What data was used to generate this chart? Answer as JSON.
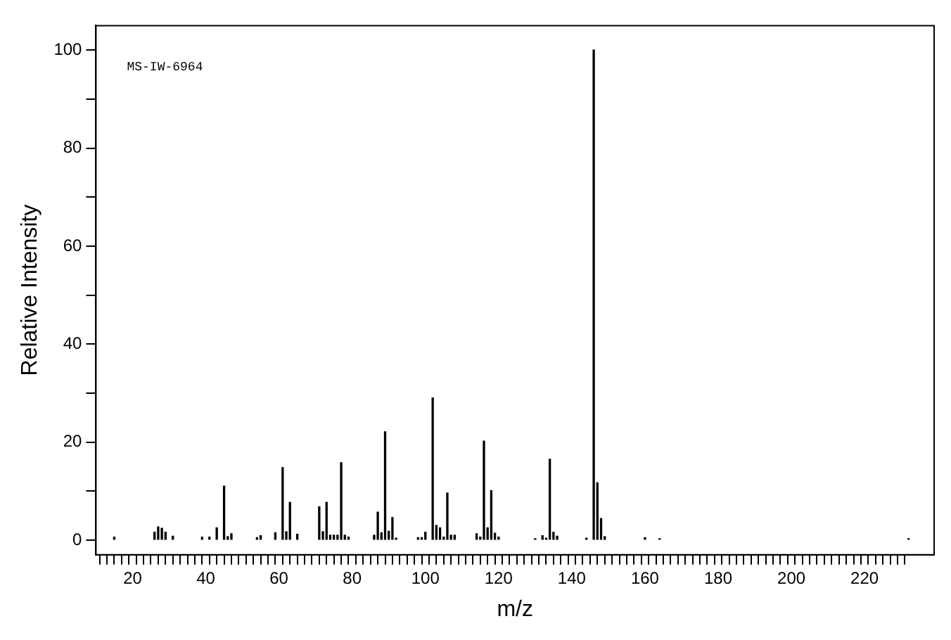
{
  "chart_data": {
    "type": "bar",
    "xlabel": "m/z",
    "ylabel": "Relative Intensity",
    "annotations": [
      "MS-IW-6964"
    ],
    "x": [
      15,
      26,
      27,
      28,
      29,
      31,
      39,
      41,
      43,
      45,
      46,
      47,
      54,
      55,
      59,
      61,
      62,
      63,
      65,
      71,
      72,
      73,
      74,
      75,
      76,
      77,
      78,
      79,
      86,
      87,
      88,
      89,
      90,
      91,
      92,
      98,
      99,
      100,
      102,
      103,
      104,
      105,
      106,
      107,
      108,
      114,
      115,
      116,
      117,
      118,
      119,
      120,
      130,
      132,
      133,
      134,
      135,
      136,
      144,
      146,
      147,
      148,
      149,
      160,
      164,
      232
    ],
    "values": [
      0.6,
      1.6,
      2.7,
      2.4,
      1.6,
      0.8,
      0.6,
      0.6,
      2.5,
      11,
      0.7,
      1.3,
      0.5,
      0.9,
      1.5,
      14.8,
      1.7,
      7.7,
      1.2,
      6.8,
      1.7,
      7.7,
      1,
      1,
      1,
      15.8,
      1,
      0.6,
      1,
      5.7,
      1.5,
      22.1,
      1.8,
      4.6,
      0.4,
      0.5,
      0.5,
      1.6,
      29,
      3,
      2.5,
      0.6,
      9.6,
      1,
      1,
      1.3,
      0.6,
      20.2,
      2.5,
      10.1,
      1.4,
      0.6,
      0.3,
      0.9,
      0.4,
      16.5,
      1.6,
      0.8,
      0.4,
      100,
      11.7,
      4.4,
      0.7,
      0.5,
      0.3,
      0.3
    ],
    "color": "#000000",
    "xlim": [
      10,
      239
    ],
    "xticks": [
      {
        "value": 12,
        "label": null
      },
      {
        "value": 14,
        "label": null
      },
      {
        "value": 16,
        "label": null
      },
      {
        "value": 18,
        "label": null
      },
      20,
      {
        "value": 22,
        "label": null
      },
      {
        "value": 24,
        "label": null
      },
      {
        "value": 26,
        "label": null
      },
      {
        "value": 28,
        "label": null
      },
      {
        "value": 30,
        "label": null
      },
      {
        "value": 32,
        "label": null
      },
      {
        "value": 34,
        "label": null
      },
      {
        "value": 36,
        "label": null
      },
      {
        "value": 38,
        "label": null
      },
      40,
      {
        "value": 42,
        "label": null
      },
      {
        "value": 44,
        "label": null
      },
      {
        "value": 46,
        "label": null
      },
      {
        "value": 48,
        "label": null
      },
      {
        "value": 50,
        "label": null
      },
      {
        "value": 52,
        "label": null
      },
      {
        "value": 54,
        "label": null
      },
      {
        "value": 56,
        "label": null
      },
      {
        "value": 58,
        "label": null
      },
      60,
      {
        "value": 62,
        "label": null
      },
      {
        "value": 64,
        "label": null
      },
      {
        "value": 66,
        "label": null
      },
      {
        "value": 68,
        "label": null
      },
      {
        "value": 70,
        "label": null
      },
      {
        "value": 72,
        "label": null
      },
      {
        "value": 74,
        "label": null
      },
      {
        "value": 76,
        "label": null
      },
      {
        "value": 78,
        "label": null
      },
      80,
      {
        "value": 82,
        "label": null
      },
      {
        "value": 84,
        "label": null
      },
      {
        "value": 86,
        "label": null
      },
      {
        "value": 88,
        "label": null
      },
      {
        "value": 90,
        "label": null
      },
      {
        "value": 92,
        "label": null
      },
      {
        "value": 94,
        "label": null
      },
      {
        "value": 96,
        "label": null
      },
      {
        "value": 98,
        "label": null
      },
      100,
      {
        "value": 102,
        "label": null
      },
      {
        "value": 104,
        "label": null
      },
      {
        "value": 106,
        "label": null
      },
      {
        "value": 108,
        "label": null
      },
      {
        "value": 110,
        "label": null
      },
      {
        "value": 112,
        "label": null
      },
      {
        "value": 114,
        "label": null
      },
      {
        "value": 116,
        "label": null
      },
      {
        "value": 118,
        "label": null
      },
      120,
      {
        "value": 122,
        "label": null
      },
      {
        "value": 124,
        "label": null
      },
      {
        "value": 126,
        "label": null
      },
      {
        "value": 128,
        "label": null
      },
      {
        "value": 130,
        "label": null
      },
      {
        "value": 132,
        "label": null
      },
      {
        "value": 134,
        "label": null
      },
      {
        "value": 136,
        "label": null
      },
      {
        "value": 138,
        "label": null
      },
      140,
      {
        "value": 142,
        "label": null
      },
      {
        "value": 144,
        "label": null
      },
      {
        "value": 146,
        "label": null
      },
      {
        "value": 148,
        "label": null
      },
      {
        "value": 150,
        "label": null
      },
      {
        "value": 152,
        "label": null
      },
      {
        "value": 154,
        "label": null
      },
      {
        "value": 156,
        "label": null
      },
      {
        "value": 158,
        "label": null
      },
      160,
      {
        "value": 162,
        "label": null
      },
      {
        "value": 164,
        "label": null
      },
      {
        "value": 166,
        "label": null
      },
      {
        "value": 168,
        "label": null
      },
      {
        "value": 170,
        "label": null
      },
      {
        "value": 172,
        "label": null
      },
      {
        "value": 174,
        "label": null
      },
      {
        "value": 176,
        "label": null
      },
      {
        "value": 178,
        "label": null
      },
      180,
      {
        "value": 182,
        "label": null
      },
      {
        "value": 184,
        "label": null
      },
      {
        "value": 186,
        "label": null
      },
      {
        "value": 188,
        "label": null
      },
      {
        "value": 190,
        "label": null
      },
      {
        "value": 192,
        "label": null
      },
      {
        "value": 194,
        "label": null
      },
      {
        "value": 196,
        "label": null
      },
      {
        "value": 198,
        "label": null
      },
      200,
      {
        "value": 202,
        "label": null
      },
      {
        "value": 204,
        "label": null
      },
      {
        "value": 206,
        "label": null
      },
      {
        "value": 208,
        "label": null
      },
      {
        "value": 210,
        "label": null
      },
      {
        "value": 212,
        "label": null
      },
      {
        "value": 214,
        "label": null
      },
      {
        "value": 216,
        "label": null
      },
      {
        "value": 218,
        "label": null
      },
      220,
      {
        "value": 222,
        "label": null
      },
      {
        "value": 224,
        "label": null
      },
      {
        "value": 226,
        "label": null
      },
      {
        "value": 228,
        "label": null
      },
      {
        "value": 230,
        "label": null
      }
    ],
    "ylim": [
      -3,
      105
    ],
    "yticks": [
      0,
      {
        "value": 10,
        "label": null
      },
      20,
      {
        "value": 30,
        "label": null
      },
      40,
      {
        "value": 50,
        "label": null
      },
      60,
      {
        "value": 70,
        "label": null
      },
      80,
      {
        "value": 90,
        "label": null
      },
      100
    ]
  }
}
